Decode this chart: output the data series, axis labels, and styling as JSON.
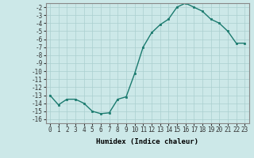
{
  "x": [
    0,
    1,
    2,
    3,
    4,
    5,
    6,
    7,
    8,
    9,
    10,
    11,
    12,
    13,
    14,
    15,
    16,
    17,
    18,
    19,
    20,
    21,
    22,
    23
  ],
  "y": [
    -13,
    -14.2,
    -13.5,
    -13.5,
    -14,
    -15,
    -15.3,
    -15.2,
    -13.5,
    -13.2,
    -10.3,
    -7.0,
    -5.2,
    -4.2,
    -3.5,
    -2.0,
    -1.5,
    -2.0,
    -2.5,
    -3.5,
    -4.0,
    -5.0,
    -6.5,
    -6.5
  ],
  "line_color": "#1a7a6e",
  "marker": "s",
  "marker_size": 1.8,
  "bg_color": "#cce8e8",
  "grid_color": "#aacfcf",
  "xlabel": "Humidex (Indice chaleur)",
  "xlim": [
    -0.5,
    23.5
  ],
  "ylim": [
    -16.5,
    -1.5
  ],
  "yticks": [
    -16,
    -15,
    -14,
    -13,
    -12,
    -11,
    -10,
    -9,
    -8,
    -7,
    -6,
    -5,
    -4,
    -3,
    -2
  ],
  "xticks": [
    0,
    1,
    2,
    3,
    4,
    5,
    6,
    7,
    8,
    9,
    10,
    11,
    12,
    13,
    14,
    15,
    16,
    17,
    18,
    19,
    20,
    21,
    22,
    23
  ],
  "axis_fontsize": 5.5,
  "label_fontsize": 6.5,
  "line_width": 1.0
}
